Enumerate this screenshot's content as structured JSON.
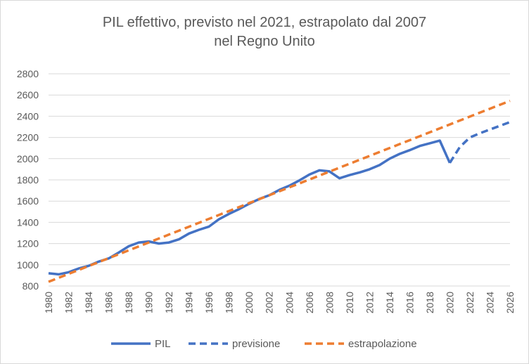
{
  "chart_data": {
    "type": "line",
    "title_line1": "PIL effettivo, previsto nel 2021, estrapolato dal 2007",
    "title_line2": "nel Regno Unito",
    "xlabel": "",
    "ylabel": "",
    "x_range": [
      1980,
      2026
    ],
    "ylim": [
      800,
      2800
    ],
    "y_ticks": [
      "800",
      "1000",
      "1200",
      "1400",
      "1600",
      "1800",
      "2000",
      "2200",
      "2400",
      "2600",
      "2800"
    ],
    "x_ticks": [
      "1980",
      "1982",
      "1984",
      "1986",
      "1988",
      "1990",
      "1992",
      "1994",
      "1996",
      "1998",
      "2000",
      "2002",
      "2004",
      "2006",
      "2008",
      "2010",
      "2012",
      "2014",
      "2016",
      "2018",
      "2020",
      "2022",
      "2024",
      "2026"
    ],
    "grid": true,
    "legend_position": "bottom",
    "series": [
      {
        "name": "PIL",
        "color": "#4472c4",
        "style": "solid",
        "x": [
          1980,
          1981,
          1982,
          1983,
          1984,
          1985,
          1986,
          1987,
          1988,
          1989,
          1990,
          1991,
          1992,
          1993,
          1994,
          1995,
          1996,
          1997,
          1998,
          1999,
          2000,
          2001,
          2002,
          2003,
          2004,
          2005,
          2006,
          2007,
          2008,
          2009,
          2010,
          2011,
          2012,
          2013,
          2014,
          2015,
          2016,
          2017,
          2018,
          2019,
          2020
        ],
        "y": [
          920,
          910,
          930,
          965,
          990,
          1030,
          1060,
          1115,
          1175,
          1210,
          1220,
          1200,
          1210,
          1240,
          1295,
          1330,
          1360,
          1430,
          1480,
          1525,
          1575,
          1620,
          1655,
          1705,
          1745,
          1795,
          1850,
          1890,
          1880,
          1815,
          1845,
          1870,
          1900,
          1940,
          2000,
          2045,
          2080,
          2120,
          2145,
          2170,
          1960
        ]
      },
      {
        "name": "previsione",
        "color": "#4472c4",
        "style": "dashed",
        "x": [
          2020,
          2021,
          2022,
          2023,
          2024,
          2025,
          2026
        ],
        "y": [
          1960,
          2110,
          2200,
          2240,
          2275,
          2310,
          2345
        ]
      },
      {
        "name": "estrapolazione",
        "color": "#ed7d31",
        "style": "dashed",
        "x": [
          1980,
          2026
        ],
        "y": [
          840,
          2545
        ]
      }
    ]
  }
}
